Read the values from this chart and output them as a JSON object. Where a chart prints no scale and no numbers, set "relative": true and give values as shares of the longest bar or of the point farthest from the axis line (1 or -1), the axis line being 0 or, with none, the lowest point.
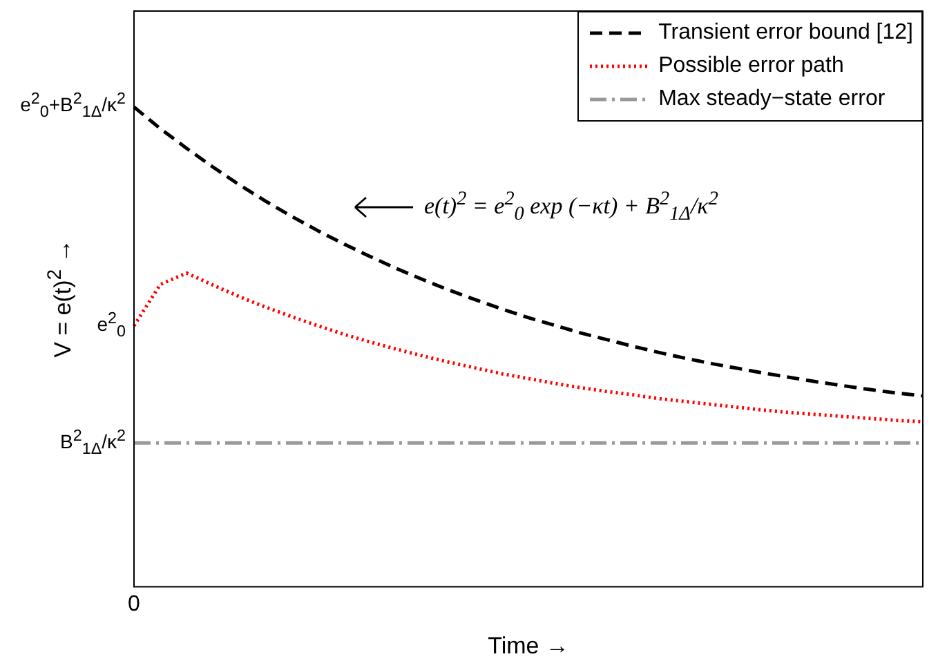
{
  "chart_data": {
    "type": "line",
    "relative": true,
    "xlabel": "Time →",
    "ylabel": "V = e(t)$^{2}$ →",
    "categories": [
      null,
      null,
      null,
      null,
      null,
      null,
      null,
      null,
      null,
      null,
      null,
      null,
      null,
      null,
      null,
      null,
      null,
      null,
      null,
      null,
      null,
      null,
      null,
      null,
      null,
      null,
      null,
      null,
      null,
      null,
      null
    ],
    "series": [
      {
        "name": "Transient error bound [12]",
        "color": "#000000",
        "line_style": "dashed",
        "values": [
          1.0,
          0.955,
          0.914,
          0.875,
          0.838,
          0.804,
          0.772,
          0.742,
          0.714,
          0.688,
          0.663,
          0.64,
          0.618,
          0.598,
          0.579,
          0.561,
          0.545,
          0.529,
          0.515,
          0.501,
          0.488,
          0.476,
          0.465,
          0.455,
          0.445,
          0.436,
          0.427,
          0.419,
          0.411,
          0.404,
          0.398
        ]
      },
      {
        "name": "Possible error path",
        "color": "#ff0000",
        "line_style": "dotted",
        "values": [
          0.544,
          0.63,
          0.654,
          0.629,
          0.605,
          0.583,
          0.563,
          0.544,
          0.526,
          0.51,
          0.495,
          0.481,
          0.468,
          0.456,
          0.444,
          0.434,
          0.424,
          0.415,
          0.407,
          0.4,
          0.392,
          0.386,
          0.38,
          0.374,
          0.368,
          0.363,
          0.359,
          0.355,
          0.351,
          0.347,
          0.344
        ]
      },
      {
        "name": "Max steady−state error",
        "color": "#999999",
        "line_style": "dashdot",
        "values": [
          0.3,
          0.3,
          0.3,
          0.3,
          0.3,
          0.3,
          0.3,
          0.3,
          0.3,
          0.3,
          0.3,
          0.3,
          0.3,
          0.3,
          0.3,
          0.3,
          0.3,
          0.3,
          0.3,
          0.3,
          0.3,
          0.3,
          0.3,
          0.3,
          0.3,
          0.3,
          0.3,
          0.3,
          0.3,
          0.3,
          0.3
        ]
      }
    ],
    "annotations": [
      "0",
      "e$^{2}$$_{0}$+B$^{2}$$_{1Δ}$/κ$^{2}$",
      "e$^{2}$$_{0}$",
      "B$^{2}$$_{1Δ}$/κ$^{2}$",
      "e(t)$^{2}$ = e$^{2}$$_{0}$ exp (−κt) + B$^{2}$$_{1Δ}$/κ$^{2}$"
    ],
    "legend": "top right",
    "marker": "none",
    "grid": false
  }
}
